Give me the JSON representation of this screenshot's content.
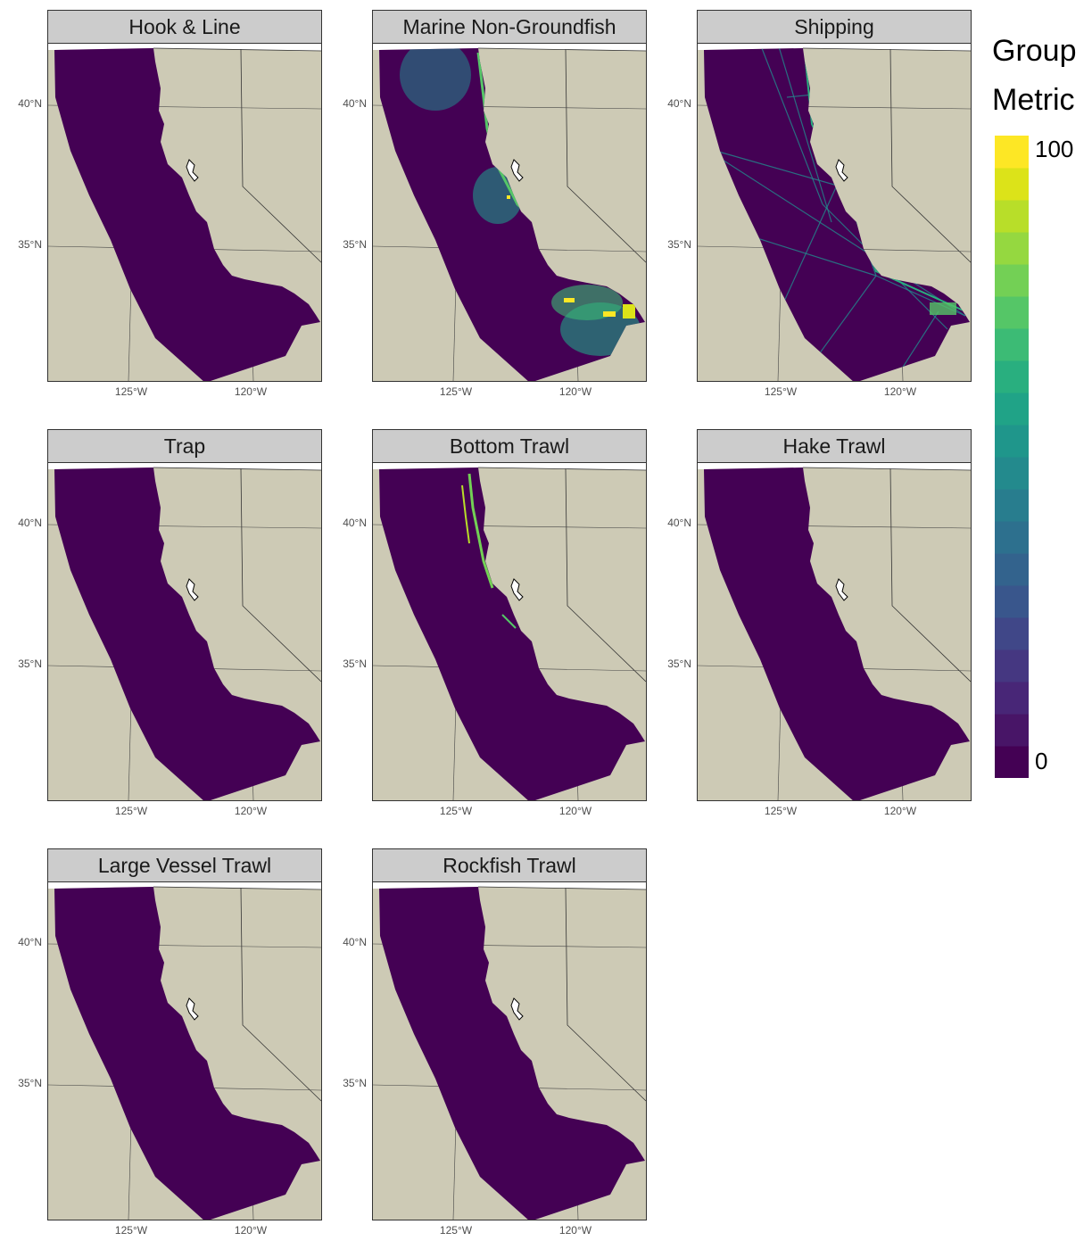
{
  "legend": {
    "title_line1": "Group",
    "title_line2": "Metric",
    "max_label": "100",
    "min_label": "0",
    "colors": [
      "#440154",
      "#481567",
      "#482677",
      "#453781",
      "#404788",
      "#39568c",
      "#33638d",
      "#2d708e",
      "#287d8e",
      "#238a8d",
      "#1f968b",
      "#20a387",
      "#29af7f",
      "#3cbb75",
      "#55c667",
      "#73d055",
      "#95d840",
      "#b8de29",
      "#dce319",
      "#fde725"
    ]
  },
  "map_colors": {
    "ocean": "#440154",
    "land": "#cdcab5",
    "panel_bg": "#ffffff",
    "strip_bg": "#cccccc"
  },
  "axes": {
    "lat_labels": [
      "40°N",
      "35°N"
    ],
    "lon_labels": [
      "125°W",
      "120°W"
    ]
  },
  "panels": [
    {
      "title": "Hook & Line",
      "activity": "none"
    },
    {
      "title": "Marine Non-Groundfish",
      "activity": "marine"
    },
    {
      "title": "Shipping",
      "activity": "shipping"
    },
    {
      "title": "Trap",
      "activity": "none"
    },
    {
      "title": "Bottom Trawl",
      "activity": "bottom"
    },
    {
      "title": "Hake Trawl",
      "activity": "none"
    },
    {
      "title": "Large Vessel Trawl",
      "activity": "none"
    },
    {
      "title": "Rockfish Trawl",
      "activity": "none"
    }
  ]
}
